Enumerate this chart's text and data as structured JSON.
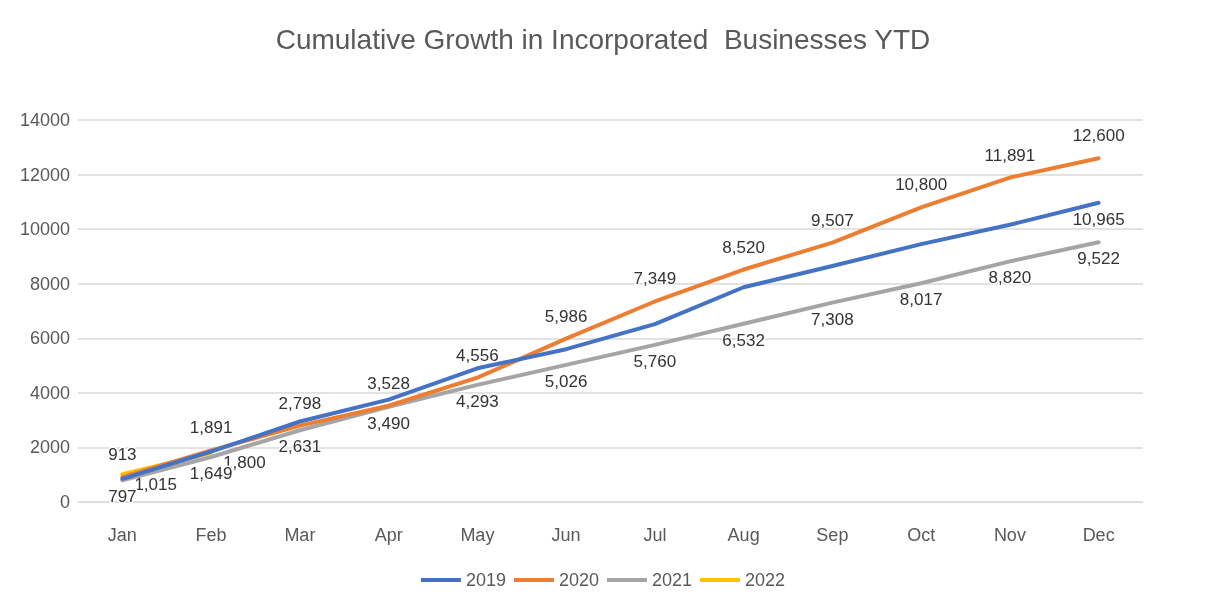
{
  "chart_data": {
    "type": "line",
    "title": "Cumulative Growth in Incorporated  Businesses YTD",
    "categories": [
      "Jan",
      "Feb",
      "Mar",
      "Apr",
      "May",
      "Jun",
      "Jul",
      "Aug",
      "Sep",
      "Oct",
      "Nov",
      "Dec"
    ],
    "series": [
      {
        "name": "2019",
        "color": "#4472c4",
        "values": [
          850,
          1850,
          2950,
          3750,
          4900,
          5600,
          6520,
          7870,
          8650,
          9450,
          10160,
          10965
        ],
        "value_labels": [
          null,
          null,
          null,
          null,
          null,
          null,
          null,
          null,
          null,
          null,
          null,
          "10,965"
        ]
      },
      {
        "name": "2020",
        "color": "#ed7d31",
        "values": [
          913,
          1891,
          2798,
          3528,
          4556,
          5986,
          7349,
          8520,
          9507,
          10800,
          11891,
          12600
        ],
        "value_labels": [
          "913",
          "1,891",
          "2,798",
          "3,528",
          "4,556",
          "5,986",
          "7,349",
          "8,520",
          "9,507",
          "10,800",
          "11,891",
          "12,600"
        ]
      },
      {
        "name": "2021",
        "color": "#a5a5a5",
        "values": [
          797,
          1649,
          2631,
          3490,
          4293,
          5026,
          5760,
          6532,
          7308,
          8017,
          8820,
          9522
        ],
        "value_labels": [
          "797",
          "1,649",
          "2,631",
          "3,490",
          "4,293",
          "5,026",
          "5,760",
          "6,532",
          "7,308",
          "8,017",
          "8,820",
          "9,522"
        ]
      },
      {
        "name": "2022",
        "color": "#ffc000",
        "values": [
          1015,
          1800,
          null,
          null,
          null,
          null,
          null,
          null,
          null,
          null,
          null,
          null
        ],
        "value_labels": [
          "1,015",
          "1,800",
          null,
          null,
          null,
          null,
          null,
          null,
          null,
          null,
          null,
          null
        ]
      }
    ],
    "ylim": [
      0,
      14000
    ],
    "yticks": [
      0,
      2000,
      4000,
      6000,
      8000,
      10000,
      12000,
      14000
    ],
    "grid": "y",
    "legend": "bottom",
    "marker": "none",
    "line_style": "solid"
  }
}
